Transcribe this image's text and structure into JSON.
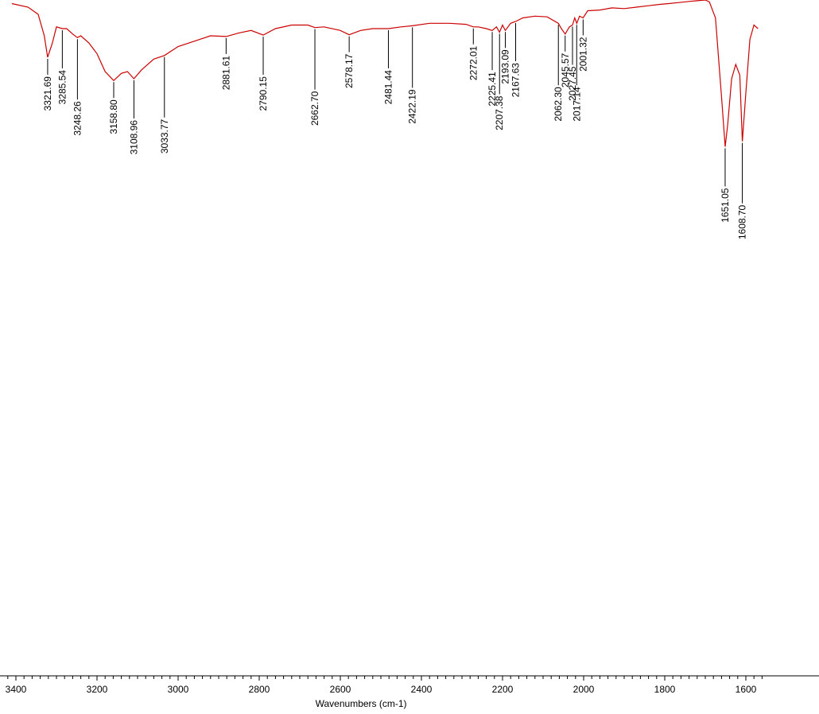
{
  "chart_data": {
    "type": "line",
    "title": "",
    "xlabel": "Wavenumbers (cm-1)",
    "ylabel": "",
    "xlim": [
      3410,
      1570
    ],
    "x_reversed": true,
    "x_ticks": [
      "3400",
      "3200",
      "3000",
      "2800",
      "2600",
      "2400",
      "2200",
      "2000",
      "1800",
      "1600"
    ],
    "line_color": "#cc0000",
    "grid": false,
    "series": [
      {
        "x": [
          3410,
          3370,
          3345,
          3330,
          3321.69,
          3310,
          3300,
          3285.54,
          3275,
          3260,
          3248.26,
          3240,
          3220,
          3200,
          3180,
          3158.8,
          3140,
          3125,
          3108.96,
          3090,
          3060,
          3033.77,
          3000,
          2960,
          2920,
          2881.61,
          2850,
          2820,
          2790.15,
          2760,
          2720,
          2680,
          2662.7,
          2640,
          2600,
          2578.17,
          2550,
          2520,
          2481.44,
          2450,
          2422.19,
          2380,
          2330,
          2290,
          2272.01,
          2260,
          2240,
          2225.41,
          2215,
          2207.38,
          2200,
          2193.09,
          2180,
          2167.63,
          2150,
          2120,
          2090,
          2062.3,
          2055,
          2045.57,
          2035,
          2027.45,
          2022,
          2017.14,
          2010,
          2001.32,
          1990,
          1960,
          1930,
          1900,
          1870,
          1840,
          1810,
          1790,
          1765,
          1740,
          1720,
          1700,
          1690,
          1675,
          1660,
          1651.05,
          1645,
          1635,
          1625,
          1615,
          1608.7,
          1600,
          1590,
          1580,
          1570
        ],
        "y": [
          99.0,
          98.0,
          96.0,
          90.0,
          84.0,
          88.0,
          92.5,
          92.0,
          92.0,
          90.5,
          89.5,
          90.0,
          88.0,
          85.0,
          80.0,
          77.5,
          79.5,
          80.0,
          78.0,
          80.5,
          83.5,
          84.5,
          87.0,
          88.5,
          90.0,
          89.8,
          90.8,
          91.5,
          90.2,
          92.0,
          93.0,
          93.0,
          92.3,
          92.5,
          91.5,
          90.3,
          91.5,
          92.0,
          92.0,
          92.5,
          92.8,
          93.5,
          93.5,
          93.2,
          92.5,
          92.5,
          92.0,
          91.5,
          92.5,
          91.0,
          93.0,
          91.5,
          93.5,
          94.0,
          95.0,
          95.5,
          95.3,
          93.5,
          92.0,
          90.5,
          92.5,
          93.0,
          95.0,
          93.5,
          95.5,
          95.0,
          97.0,
          97.2,
          97.8,
          97.6,
          98.0,
          98.4,
          98.8,
          99.0,
          99.3,
          99.6,
          99.8,
          100.0,
          99.5,
          95.0,
          73.0,
          59.0,
          65.0,
          78.0,
          82.0,
          79.0,
          60.5,
          74.0,
          89.0,
          93.0,
          92.0
        ]
      }
    ],
    "peak_labels": [
      {
        "x": 3321.69,
        "label": "3321.69"
      },
      {
        "x": 3285.54,
        "label": "3285.54"
      },
      {
        "x": 3248.26,
        "label": "3248.26"
      },
      {
        "x": 3158.8,
        "label": "3158.80"
      },
      {
        "x": 3108.96,
        "label": "3108.96"
      },
      {
        "x": 3033.77,
        "label": "3033.77"
      },
      {
        "x": 2881.61,
        "label": "2881.61"
      },
      {
        "x": 2790.15,
        "label": "2790.15"
      },
      {
        "x": 2662.7,
        "label": "2662.70"
      },
      {
        "x": 2578.17,
        "label": "2578.17"
      },
      {
        "x": 2481.44,
        "label": "2481.44"
      },
      {
        "x": 2422.19,
        "label": "2422.19"
      },
      {
        "x": 2272.01,
        "label": "2272.01"
      },
      {
        "x": 2225.41,
        "label": "2225.41"
      },
      {
        "x": 2207.38,
        "label": "2207.38"
      },
      {
        "x": 2193.09,
        "label": "2193.09"
      },
      {
        "x": 2167.63,
        "label": "2167.63"
      },
      {
        "x": 2062.3,
        "label": "2062.30"
      },
      {
        "x": 2045.57,
        "label": "2045.57"
      },
      {
        "x": 2027.45,
        "label": "2027.45"
      },
      {
        "x": 2017.14,
        "label": "2017.14"
      },
      {
        "x": 2001.32,
        "label": "2001.32"
      },
      {
        "x": 1651.05,
        "label": "1651.05"
      },
      {
        "x": 1608.7,
        "label": "1608.70"
      }
    ]
  }
}
